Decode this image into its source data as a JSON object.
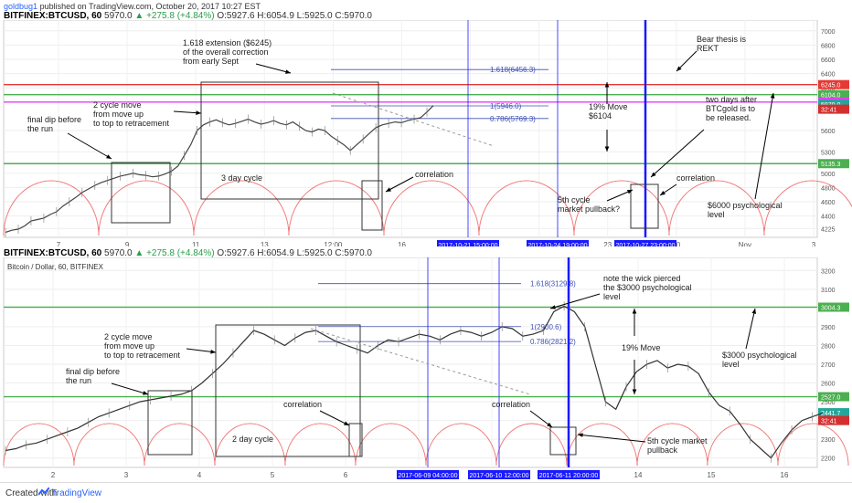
{
  "header": {
    "user": "goldbug1",
    "published": "published on TradingView.com, October 20, 2017 10:27 EST"
  },
  "footer": {
    "created": "Created with",
    "brand": "TradingView"
  },
  "colors": {
    "red": "#e53935",
    "green": "#4caf50",
    "magenta": "#e040fb",
    "blue": "#1a1aff",
    "candle": "#555555"
  },
  "chart_data": [
    {
      "type": "line",
      "symbol": "BITFINEX:BTCUSD, 60",
      "ohlc": {
        "last": "5970.0",
        "change": "+275.8 (+4.84%)",
        "o": "O:5927.6",
        "h": "H:6054.9",
        "l": "L:5925.0",
        "c": "C:5970.0"
      },
      "ylim": [
        4100,
        7100
      ],
      "x_ticks": [
        "7",
        "9",
        "11",
        "13",
        "12:00",
        "16",
        "18",
        "20",
        "23",
        "30",
        "Nov",
        "3"
      ],
      "y_ticks": [
        4225,
        4400,
        4600,
        4800,
        5000,
        5300,
        5600,
        6000,
        6200,
        6400,
        6600,
        6800,
        7000
      ],
      "series": [
        {
          "values": [
            4170,
            4200,
            4215,
            4260,
            4330,
            4350,
            4370,
            4420,
            4460,
            4540,
            4600,
            4660,
            4730,
            4780,
            4830,
            4870,
            4900,
            4930,
            4960,
            4980,
            5000,
            4980,
            4970,
            4950,
            4960,
            4990,
            5030,
            5100,
            5250,
            5400,
            5600,
            5680,
            5720,
            5750,
            5710,
            5680,
            5700,
            5730,
            5760,
            5720,
            5690,
            5710,
            5740,
            5700,
            5680,
            5720,
            5660,
            5600,
            5580,
            5620,
            5600,
            5520,
            5460,
            5400,
            5320,
            5400,
            5480,
            5560,
            5640,
            5680,
            5700,
            5720,
            5710,
            5740,
            5760,
            5780,
            5860,
            5950
          ]
        }
      ],
      "hlines": [
        {
          "value": 6245.0,
          "label": "6245.0",
          "color": "#e53935"
        },
        {
          "value": 6104.0,
          "label": "6104.0",
          "color": "#4caf50"
        },
        {
          "value": 6000.0,
          "label": "6000.0",
          "color": "#e040fb"
        },
        {
          "value": 5135.3,
          "label": "5135.3",
          "color": "#4caf50"
        }
      ],
      "price_tags": [
        {
          "value": 5970.0,
          "label": "5970.0"
        },
        {
          "value": 5900,
          "label": "32:41"
        }
      ],
      "fib": [
        {
          "value": 6456.3,
          "label": "1.618(6456.3)"
        },
        {
          "value": 5946.0,
          "label": "1(5946.0)"
        },
        {
          "value": 5769.3,
          "label": "0.786(5769.3)"
        }
      ],
      "date_tags": [
        "2017-10-21 15:00:00",
        "2017-10-24 19:00:00",
        "2017-10-27 23:00:00"
      ],
      "annotations": {
        "ext": "1.618 extension ($6245)\nof the overall correction\nfrom early Sept",
        "bear": "Bear thesis is\nREKT",
        "cycle2": "2 cycle move\nfrom move up\nto top to retracement",
        "finaldip": "final dip before\nthe run",
        "move": "19% Move\n$6104",
        "twodays": "two days after\nBTCgold is to\nbe released.",
        "threeday": "3 day cycle",
        "corr1": "correlation",
        "corr2": "correlation",
        "fifth": "5th cycle\nmarket pullback?",
        "psych": "$6000 psychological\nlevel"
      }
    },
    {
      "type": "line",
      "symbol": "BITFINEX:BTCUSD, 60",
      "title": "Bitcoin / Dollar, 60, BITFINEX",
      "ohlc": {
        "last": "5970.0",
        "change": "+275.8 (+4.84%)",
        "o": "O:5927.6",
        "h": "H:6054.9",
        "l": "L:5925.0",
        "c": "C:5970.0"
      },
      "ylim": [
        2150,
        3250
      ],
      "x_ticks": [
        "2",
        "3",
        "4",
        "5",
        "6",
        "7",
        "8",
        "13",
        "14",
        "15",
        "16"
      ],
      "y_ticks": [
        2200,
        2300,
        2400,
        2500,
        2600,
        2700,
        2800,
        2900,
        3000,
        3100,
        3200
      ],
      "series": [
        {
          "values": [
            2240,
            2250,
            2270,
            2280,
            2300,
            2320,
            2340,
            2360,
            2390,
            2420,
            2440,
            2460,
            2480,
            2500,
            2510,
            2520,
            2530,
            2540,
            2560,
            2600,
            2650,
            2700,
            2760,
            2820,
            2880,
            2860,
            2830,
            2800,
            2840,
            2870,
            2880,
            2850,
            2820,
            2800,
            2780,
            2760,
            2800,
            2830,
            2820,
            2840,
            2860,
            2850,
            2830,
            2860,
            2880,
            2870,
            2850,
            2870,
            2900,
            2890,
            2850,
            2860,
            2880,
            2980,
            3010,
            2980,
            2900,
            2700,
            2500,
            2460,
            2580,
            2660,
            2700,
            2720,
            2680,
            2700,
            2690,
            2650,
            2550,
            2480,
            2450,
            2380,
            2300,
            2250,
            2200,
            2280,
            2350,
            2400,
            2420,
            2440
          ]
        }
      ],
      "hlines": [
        {
          "value": 3004.3,
          "label": "3004.3",
          "color": "#4caf50"
        },
        {
          "value": 2527.0,
          "label": "2527.0",
          "color": "#4caf50"
        }
      ],
      "price_tags": [
        {
          "value": 2441.7,
          "label": "2441.7"
        },
        {
          "value": 2400,
          "label": "32:41"
        }
      ],
      "fib": [
        {
          "value": 3129.8,
          "label": "1.618(3129.8)"
        },
        {
          "value": 2900.6,
          "label": "1(2900.6)"
        },
        {
          "value": 2821.2,
          "label": "0.786(2821.2)"
        }
      ],
      "date_tags": [
        "2017-06-09 04:00:00",
        "2017-06-10 12:00:00",
        "2017-06-11 20:00:00"
      ],
      "annotations": {
        "wick": "note the wick pierced\nthe $3000 psychological\nlevel",
        "cycle2": "2 cycle move\nfrom move up\nto top to retracement",
        "finaldip": "final dip before\nthe run",
        "move": "19% Move",
        "psych": "$3000 psychological\nlevel",
        "corr1": "correlation",
        "corr2": "correlation",
        "twoday": "2 day cycle",
        "fifth": "5th cycle market\npullback"
      }
    }
  ]
}
